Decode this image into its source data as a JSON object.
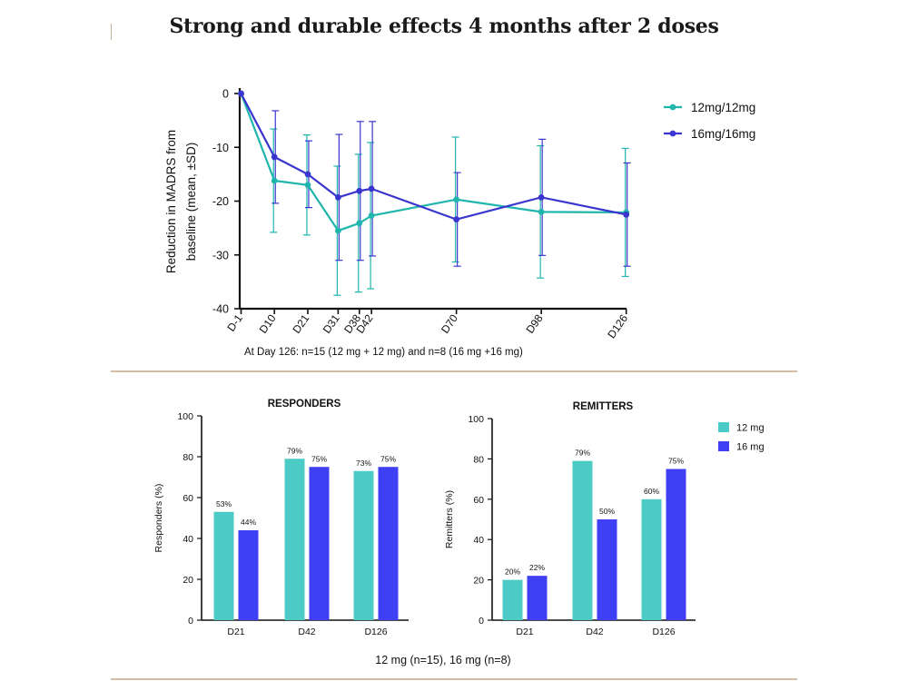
{
  "page": {
    "title": "Strong and durable effects 4 months after 2 doses",
    "line_note": "At Day 126: n=15 (12 mg + 12 mg) and n=8 (16 mg +16 mg)",
    "bar_footnote": "12 mg (n=15), 16 mg (n=8)"
  },
  "colors": {
    "teal": "#1fb5ad",
    "blue": "#3a35cf",
    "bar_teal": "#4ccbc6",
    "bar_blue": "#3f3ff5",
    "divider": "#d2bca6"
  },
  "chart_data": [
    {
      "type": "line",
      "ylabel": "Reduction in MADRS from baseline (mean, ±SD)",
      "xlabel": "",
      "x": [
        "D-1",
        "D10",
        "D21",
        "D31",
        "D38",
        "D42",
        "D70",
        "D98",
        "D126"
      ],
      "x_days": [
        -1,
        10,
        21,
        31,
        38,
        42,
        70,
        98,
        126
      ],
      "ylim": [
        -40,
        0
      ],
      "yticks": [
        0,
        -10,
        -20,
        -30,
        -40
      ],
      "legend_position": "right",
      "series": [
        {
          "name": "12mg/12mg",
          "values": [
            0,
            -16.2,
            -17,
            -25.5,
            -24.1,
            -22.7,
            -19.7,
            -22,
            -22.1
          ],
          "sd": [
            0,
            9.6,
            9.3,
            12,
            12.8,
            13.6,
            11.6,
            12.3,
            11.9
          ]
        },
        {
          "name": "16mg/16mg",
          "values": [
            0,
            -11.8,
            -15,
            -19.3,
            -18.1,
            -17.7,
            -23.4,
            -19.3,
            -22.5
          ],
          "sd": [
            0,
            8.6,
            6.2,
            11.7,
            12.9,
            12.5,
            8.7,
            10.8,
            9.6
          ]
        }
      ]
    },
    {
      "type": "bar",
      "title": "RESPONDERS",
      "ylabel": "Responders (%)",
      "categories": [
        "D21",
        "D42",
        "D126"
      ],
      "ylim": [
        0,
        100
      ],
      "yticks": [
        0,
        20,
        40,
        60,
        80,
        100
      ],
      "series": [
        {
          "name": "12 mg",
          "values": [
            53,
            79,
            73
          ],
          "labels": [
            "53%",
            "79%",
            "73%"
          ]
        },
        {
          "name": "16 mg",
          "values": [
            44,
            75,
            75
          ],
          "labels": [
            "44%",
            "75%",
            "75%"
          ]
        }
      ]
    },
    {
      "type": "bar",
      "title": "REMITTERS",
      "ylabel": "Remitters (%)",
      "categories": [
        "D21",
        "D42",
        "D126"
      ],
      "ylim": [
        0,
        100
      ],
      "yticks": [
        0,
        20,
        40,
        60,
        80,
        100
      ],
      "legend_position": "right",
      "series": [
        {
          "name": "12 mg",
          "values": [
            20,
            79,
            60
          ],
          "labels": [
            "20%",
            "79%",
            "60%"
          ]
        },
        {
          "name": "16 mg",
          "values": [
            22,
            50,
            75
          ],
          "labels": [
            "22%",
            "50%",
            "75%"
          ]
        }
      ]
    }
  ]
}
